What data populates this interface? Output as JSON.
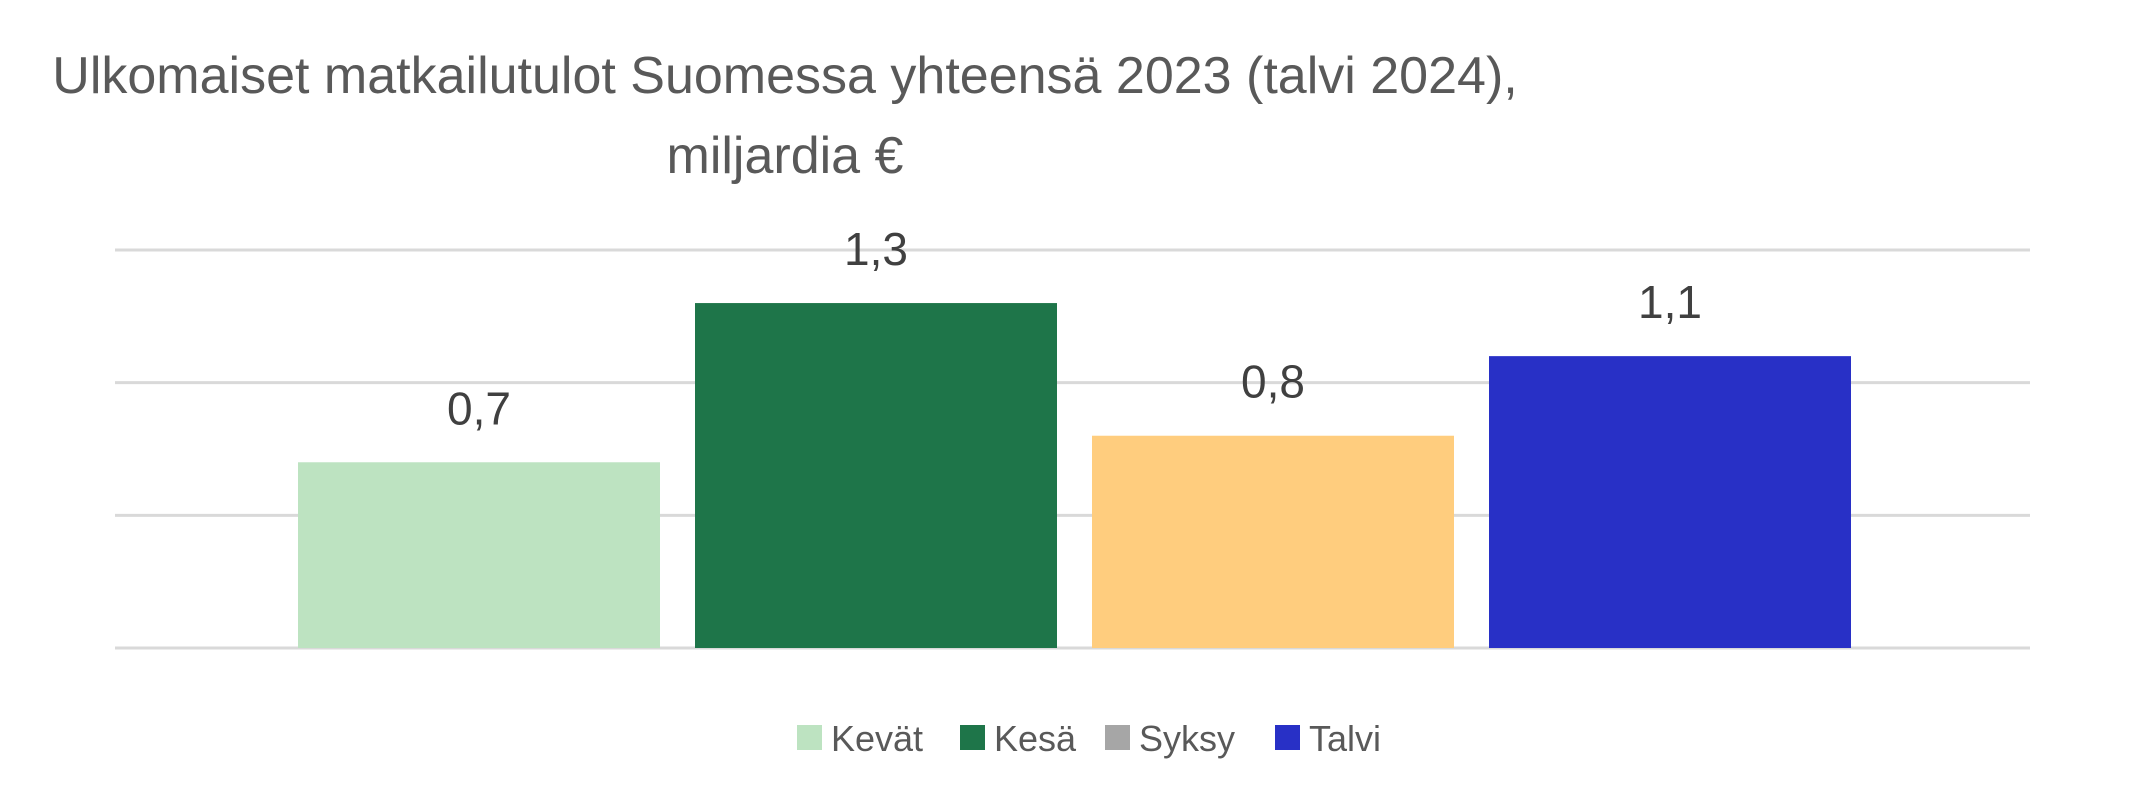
{
  "chart_data": {
    "type": "bar",
    "title": [
      "Ulkomaiset matkailutulot Suomessa yhteensä 2023 (talvi 2024),",
      "miljardia €"
    ],
    "categories": [
      "Kevät",
      "Kesä",
      "Syksy",
      "Talvi"
    ],
    "values": [
      0.7,
      1.3,
      0.8,
      1.1
    ],
    "value_labels": [
      "0,7",
      "1,3",
      "0,8",
      "1,1"
    ],
    "colors": [
      "#bde3c1",
      "#1e7549",
      "#ffcd7e",
      "#2830c6"
    ],
    "legend": {
      "position": "bottom",
      "entries": [
        {
          "label": "Kevät",
          "color": "#bde3c1"
        },
        {
          "label": "Kesä",
          "color": "#1e7549"
        },
        {
          "label": "Syksy",
          "color": "#a6a6a6"
        },
        {
          "label": "Talvi",
          "color": "#2830c6"
        }
      ]
    },
    "ylim": [
      0,
      1.5
    ],
    "gridlines": [
      0,
      0.5,
      1.0,
      1.5
    ],
    "grid": true,
    "xlabel": "",
    "ylabel": ""
  }
}
